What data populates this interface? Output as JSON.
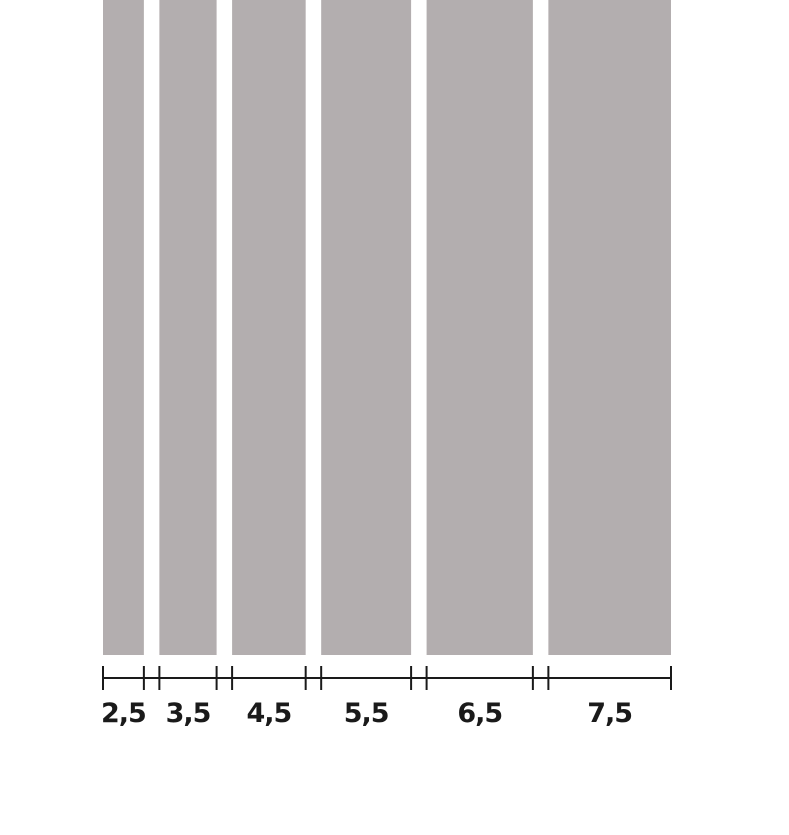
{
  "diagram": {
    "strip_color": "#b3aeaf",
    "scale_color": "#1a1a1a",
    "strips": [
      {
        "value": 2.5,
        "label": "2,5"
      },
      {
        "value": 3.5,
        "label": "3,5"
      },
      {
        "value": 4.5,
        "label": "4,5"
      },
      {
        "value": 5.5,
        "label": "5,5"
      },
      {
        "value": 6.5,
        "label": "6,5"
      },
      {
        "value": 7.5,
        "label": "7,5"
      }
    ]
  }
}
